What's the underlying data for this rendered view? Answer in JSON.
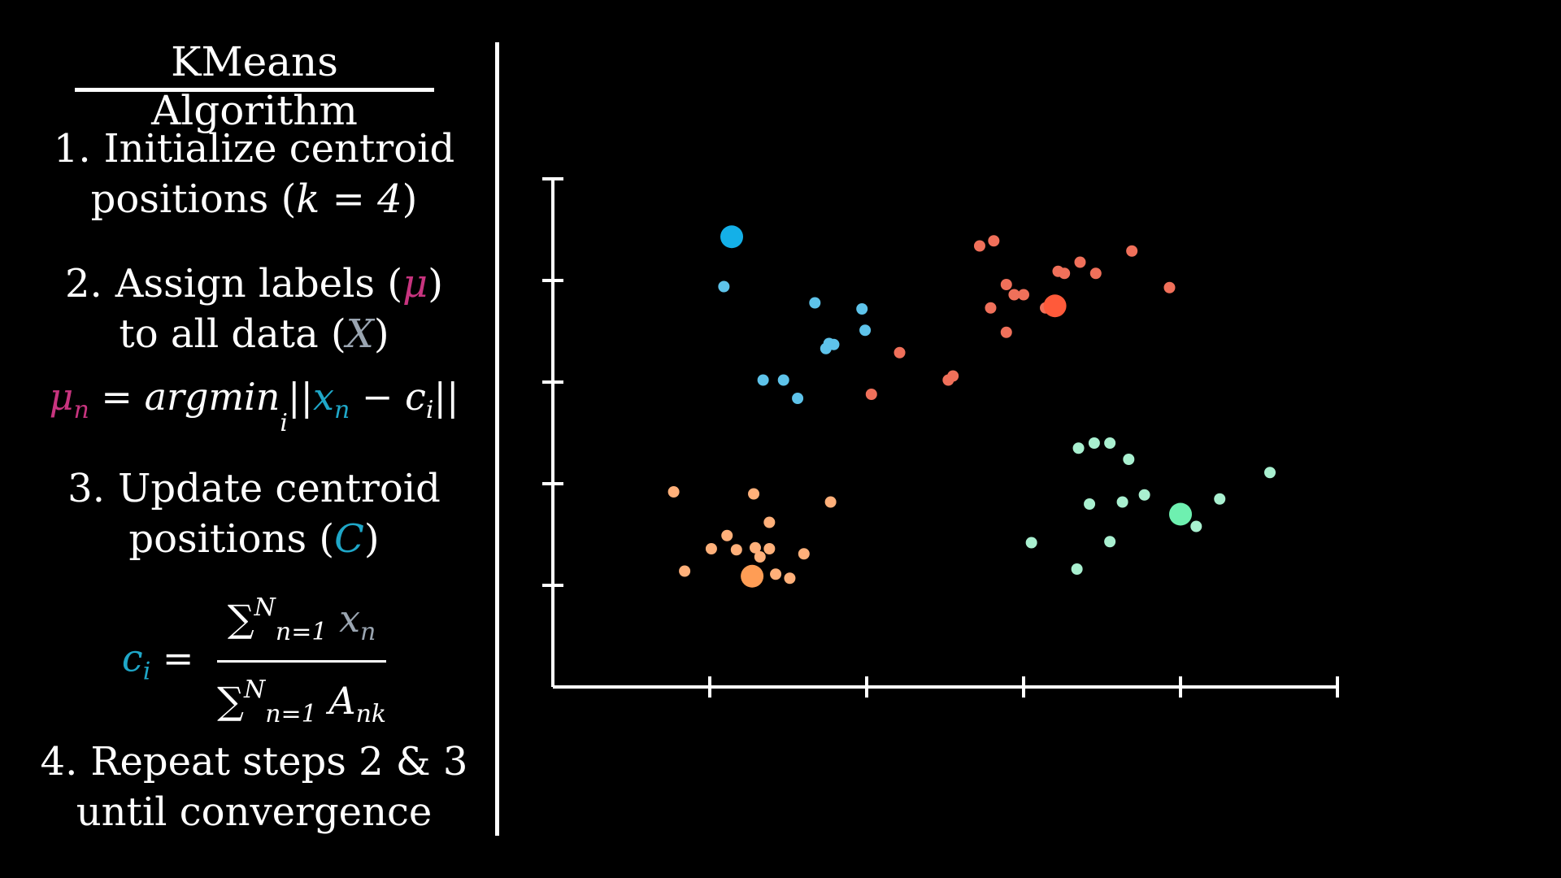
{
  "title": "KMeans Algorithm",
  "steps": [
    {
      "num": "1.",
      "line1": "Initialize centroid",
      "line2_pre": "positions (",
      "line2_math": "k = 4",
      "line2_post": ")"
    },
    {
      "num": "2.",
      "line1_pre": "Assign labels (",
      "line1_mu": "μ",
      "line1_post": ")",
      "line2_pre": "to all data (",
      "line2_x": "X",
      "line2_post": ")"
    },
    {
      "num": "3.",
      "line1": "Update centroid",
      "line2_pre": "positions (",
      "line2_c": "C",
      "line2_post": ")"
    },
    {
      "num": "4.",
      "line1": "Repeat steps 2 & 3",
      "line2": "until convergence"
    }
  ],
  "formula_assign": {
    "lhs": "μ",
    "lhs_sub": "n",
    "eq": " = argmin",
    "argmin_sub": "i",
    "open": "||",
    "x": "x",
    "x_sub": "n",
    "minus": " − c",
    "c_sub": "i",
    "close": "||"
  },
  "formula_update": {
    "lhs": "c",
    "lhs_sub": "i",
    "eq": " = ",
    "num_sum": "∑",
    "num_sup": "N",
    "num_sub": "n=1",
    "num_term": " x",
    "num_term_sub": "n",
    "den_sum": "∑",
    "den_sup": "N",
    "den_sub": "n=1",
    "den_term": " A",
    "den_term_sub": "nk"
  },
  "colors": {
    "cluster_blue": "#5ec3ea",
    "cluster_red": "#f0705a",
    "cluster_orange": "#ffb07a",
    "cluster_green": "#a9f0d0",
    "centroid_blue": "#14b0e8",
    "centroid_red": "#ff5a3a",
    "centroid_orange": "#ff9d55",
    "centroid_green": "#6ef0b0",
    "mu": "#c8347f",
    "x": "#9aa5b1",
    "c": "#1fa7c8"
  },
  "chart_data": {
    "type": "scatter",
    "title": "",
    "xlabel": "",
    "ylabel": "",
    "xlim": [
      0,
      5
    ],
    "ylim": [
      0,
      5
    ],
    "x_ticks": [
      1,
      2,
      3,
      4,
      5
    ],
    "y_ticks": [
      1,
      2,
      3,
      4,
      5
    ],
    "grid": false,
    "series": [
      {
        "color_key": "cluster_blue",
        "points": [
          [
            1.09,
            3.94
          ],
          [
            1.67,
            3.78
          ],
          [
            1.97,
            3.72
          ],
          [
            1.99,
            3.51
          ],
          [
            1.76,
            3.38
          ],
          [
            1.79,
            3.37
          ],
          [
            1.74,
            3.33
          ],
          [
            1.34,
            3.02
          ],
          [
            1.47,
            3.02
          ],
          [
            1.56,
            2.84
          ]
        ]
      },
      {
        "color_key": "cluster_red",
        "points": [
          [
            2.81,
            4.39
          ],
          [
            2.72,
            4.34
          ],
          [
            3.69,
            4.29
          ],
          [
            3.36,
            4.18
          ],
          [
            3.22,
            4.09
          ],
          [
            3.26,
            4.07
          ],
          [
            3.46,
            4.07
          ],
          [
            2.89,
            3.96
          ],
          [
            3.93,
            3.93
          ],
          [
            2.94,
            3.86
          ],
          [
            3.0,
            3.86
          ],
          [
            2.79,
            3.73
          ],
          [
            3.14,
            3.73
          ],
          [
            2.89,
            3.49
          ],
          [
            2.21,
            3.29
          ],
          [
            2.55,
            3.06
          ],
          [
            2.52,
            3.02
          ],
          [
            2.03,
            2.88
          ]
        ]
      },
      {
        "color_key": "cluster_orange",
        "points": [
          [
            0.77,
            1.92
          ],
          [
            1.28,
            1.9
          ],
          [
            1.77,
            1.82
          ],
          [
            1.38,
            1.62
          ],
          [
            1.11,
            1.49
          ],
          [
            1.29,
            1.37
          ],
          [
            1.38,
            1.36
          ],
          [
            1.01,
            1.36
          ],
          [
            1.17,
            1.35
          ],
          [
            1.6,
            1.31
          ],
          [
            1.32,
            1.28
          ],
          [
            0.84,
            1.14
          ],
          [
            1.42,
            1.11
          ],
          [
            1.51,
            1.07
          ]
        ]
      },
      {
        "color_key": "cluster_green",
        "points": [
          [
            3.35,
            2.35
          ],
          [
            3.45,
            2.4
          ],
          [
            3.55,
            2.4
          ],
          [
            3.67,
            2.24
          ],
          [
            4.57,
            2.11
          ],
          [
            3.77,
            1.89
          ],
          [
            4.25,
            1.85
          ],
          [
            3.42,
            1.8
          ],
          [
            3.63,
            1.82
          ],
          [
            4.1,
            1.58
          ],
          [
            3.55,
            1.43
          ],
          [
            3.05,
            1.42
          ],
          [
            3.34,
            1.16
          ]
        ]
      }
    ],
    "centroids": [
      {
        "color_key": "centroid_blue",
        "x": 1.14,
        "y": 4.43
      },
      {
        "color_key": "centroid_red",
        "x": 3.2,
        "y": 3.75
      },
      {
        "color_key": "centroid_orange",
        "x": 1.27,
        "y": 1.09
      },
      {
        "color_key": "centroid_green",
        "x": 4.0,
        "y": 1.7
      }
    ]
  }
}
